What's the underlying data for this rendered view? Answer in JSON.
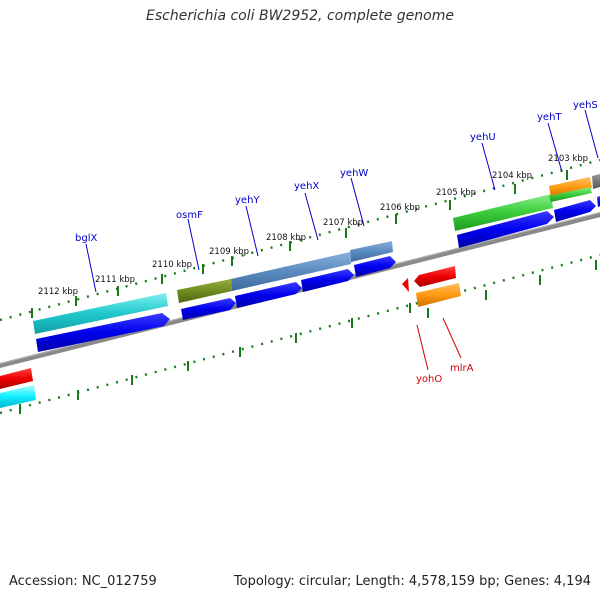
{
  "title": "Escherichia coli BW2952, complete genome",
  "accession": "Accession: NC_012759",
  "summary": "Topology: circular; Length: 4,578,159 bp; Genes: 4,194",
  "colors": {
    "forward_label": "#0000cc",
    "reverse_label": "#cc0000",
    "backbone": "#808080",
    "tick": "#1a7a1a",
    "cds_forward": "#0000ee",
    "cds_reverse": "#ee0000"
  },
  "ruler_labels": [
    "2112 kbp",
    "2111 kbp",
    "2110 kbp",
    "2109 kbp",
    "2108 kbp",
    "2107 kbp",
    "2106 kbp",
    "2105 kbp",
    "2104 kbp",
    "2103 kbp"
  ],
  "forward_genes": [
    "bglX",
    "osmF",
    "yehY",
    "yehX",
    "yehW",
    "yehU",
    "yehT",
    "yehS"
  ],
  "reverse_genes": [
    "yohO",
    "mlrA"
  ]
}
